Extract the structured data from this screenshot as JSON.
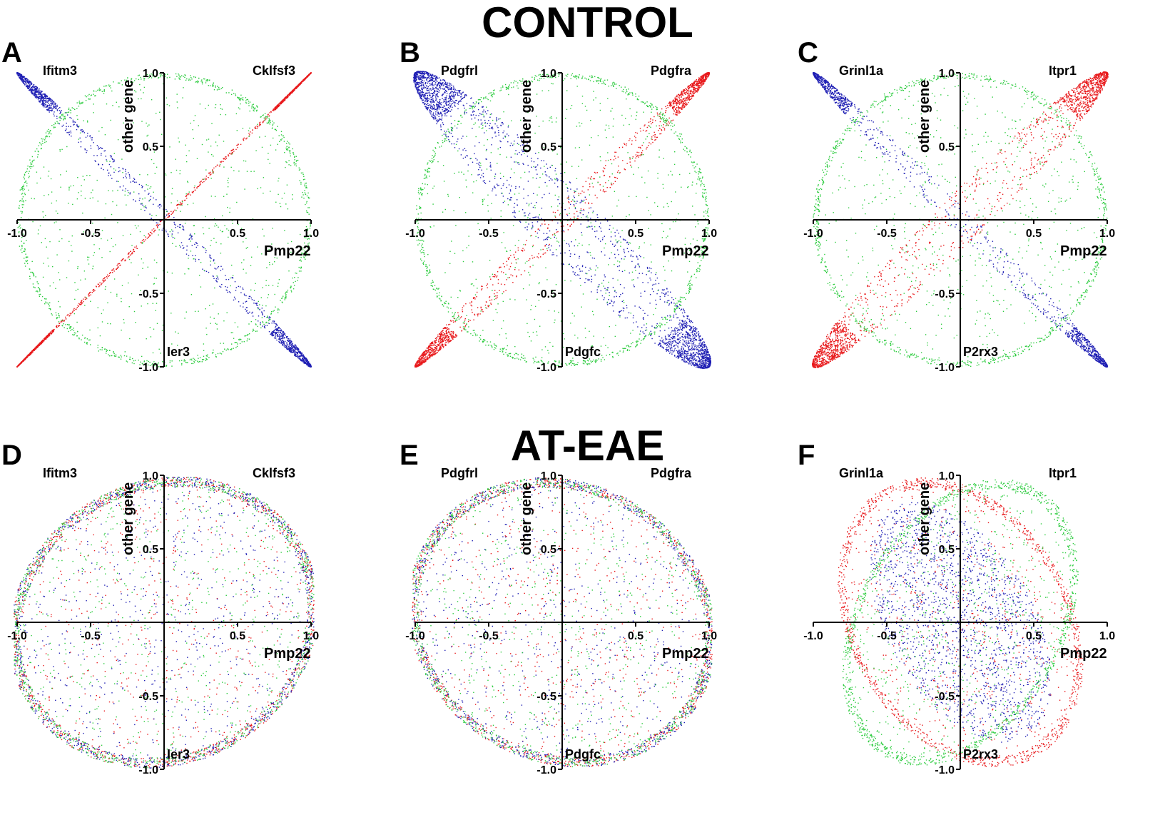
{
  "titles": {
    "control": "CONTROL",
    "eae": "AT-EAE"
  },
  "colors": {
    "red": "#e8191c",
    "blue": "#1f1fb4",
    "green": "#2ecc40",
    "axis": "#000000"
  },
  "chart_data": [
    {
      "panel": "A",
      "type": "scatter",
      "group": "CONTROL",
      "xlabel": "Pmp22",
      "ylabel": "other gene",
      "xlim": [
        -1,
        1
      ],
      "ylim": [
        -1,
        1
      ],
      "xticks": [
        "-1.0",
        "-0.5",
        "0.5",
        "1.0"
      ],
      "yticks": [
        "1.0",
        "0.5",
        "-0.5",
        "-1.0"
      ],
      "legend_labels": {
        "top_left": "Ifitm3",
        "top_right": "Cklfsf3",
        "bottom": "Ier3"
      },
      "series": [
        {
          "name": "Cklfsf3",
          "color": "red",
          "shape": "ellipse",
          "axis_deg": 45,
          "major": 1.414,
          "minor": 0.01,
          "n": 1300,
          "density": "ends"
        },
        {
          "name": "Ifitm3",
          "color": "blue",
          "shape": "ellipse",
          "axis_deg": -45,
          "major": 1.414,
          "minor": 0.06,
          "n": 1500,
          "density": "ends"
        },
        {
          "name": "Ier3",
          "color": "green",
          "shape": "circle",
          "radius": 1.0,
          "n": 1500
        }
      ]
    },
    {
      "panel": "B",
      "type": "scatter",
      "group": "CONTROL",
      "xlabel": "Pmp22",
      "ylabel": "other gene",
      "xlim": [
        -1,
        1
      ],
      "ylim": [
        -1,
        1
      ],
      "xticks": [
        "-1.0",
        "-0.5",
        "0.5",
        "1.0"
      ],
      "yticks": [
        "1.0",
        "0.5",
        "-0.5",
        "-1.0"
      ],
      "legend_labels": {
        "top_left": "Pdgfrl",
        "top_right": "Pdgfra",
        "bottom": "Pdgfc"
      },
      "series": [
        {
          "name": "Pdgfra",
          "color": "red",
          "shape": "ellipse",
          "axis_deg": 45,
          "major": 1.414,
          "minor": 0.08,
          "n": 1600,
          "density": "ends"
        },
        {
          "name": "Pdgfrl",
          "color": "blue",
          "shape": "ellipse",
          "axis_deg": -45,
          "major": 1.414,
          "minor": 0.22,
          "n": 2600,
          "density": "ends"
        },
        {
          "name": "Pdgfc",
          "color": "green",
          "shape": "circle",
          "radius": 1.0,
          "n": 1500
        }
      ]
    },
    {
      "panel": "C",
      "type": "scatter",
      "group": "CONTROL",
      "xlabel": "Pmp22",
      "ylabel": "other gene",
      "xlim": [
        -1,
        1
      ],
      "ylim": [
        -1,
        1
      ],
      "xticks": [
        "-1.0",
        "-0.5",
        "0.5",
        "1.0"
      ],
      "yticks": [
        "1.0",
        "0.5",
        "-0.5",
        "-1.0"
      ],
      "legend_labels": {
        "top_left": "Grinl1a",
        "top_right": "Itpr1",
        "bottom": "P2rx3"
      },
      "series": [
        {
          "name": "Itpr1",
          "color": "red",
          "shape": "ellipse",
          "axis_deg": 45,
          "major": 1.414,
          "minor": 0.16,
          "n": 2000,
          "density": "ends"
        },
        {
          "name": "Grinl1a",
          "color": "blue",
          "shape": "ellipse",
          "axis_deg": -45,
          "major": 1.414,
          "minor": 0.07,
          "n": 1300,
          "density": "ends"
        },
        {
          "name": "P2rx3",
          "color": "green",
          "shape": "circle",
          "radius": 1.0,
          "n": 1500
        }
      ]
    },
    {
      "panel": "D",
      "type": "scatter",
      "group": "AT-EAE",
      "xlabel": "Pmp22",
      "ylabel": "other gene",
      "xlim": [
        -1,
        1
      ],
      "ylim": [
        -1,
        1
      ],
      "xticks": [
        "-1.0",
        "-0.5",
        "0.5",
        "1.0"
      ],
      "yticks": [
        "1.0",
        "0.5",
        "-0.5",
        "-1.0"
      ],
      "legend_labels": {
        "top_left": "Ifitm3",
        "top_right": "Cklfsf3",
        "bottom": "Ier3"
      },
      "series": [
        {
          "name": "Cklfsf3",
          "color": "red",
          "shape": "ellipse",
          "axis_deg": 30,
          "major": 1.08,
          "minor": 0.96,
          "n": 1500,
          "density": "rim"
        },
        {
          "name": "Ifitm3",
          "color": "blue",
          "shape": "ellipse",
          "axis_deg": 30,
          "major": 1.08,
          "minor": 0.96,
          "n": 1500,
          "density": "rim"
        },
        {
          "name": "Ier3",
          "color": "green",
          "shape": "ellipse",
          "axis_deg": 30,
          "major": 1.08,
          "minor": 0.96,
          "n": 1500,
          "density": "rim"
        }
      ]
    },
    {
      "panel": "E",
      "type": "scatter",
      "group": "AT-EAE",
      "xlabel": "Pmp22",
      "ylabel": "other gene",
      "xlim": [
        -1,
        1
      ],
      "ylim": [
        -1,
        1
      ],
      "xticks": [
        "-1.0",
        "-0.5",
        "0.5",
        "1.0"
      ],
      "yticks": [
        "1.0",
        "0.5",
        "-0.5",
        "-1.0"
      ],
      "legend_labels": {
        "top_left": "Pdgfrl",
        "top_right": "Pdgfra",
        "bottom": "Pdgfc"
      },
      "series": [
        {
          "name": "Pdgfra",
          "color": "red",
          "shape": "ellipse",
          "axis_deg": -30,
          "major": 1.08,
          "minor": 0.95,
          "n": 1500,
          "density": "rim"
        },
        {
          "name": "Pdgfrl",
          "color": "blue",
          "shape": "ellipse",
          "axis_deg": -30,
          "major": 1.08,
          "minor": 0.95,
          "n": 1500,
          "density": "rim"
        },
        {
          "name": "Pdgfc",
          "color": "green",
          "shape": "ellipse",
          "axis_deg": -30,
          "major": 1.08,
          "minor": 0.95,
          "n": 1500,
          "density": "rim"
        }
      ]
    },
    {
      "panel": "F",
      "type": "scatter",
      "group": "AT-EAE",
      "xlabel": "Pmp22",
      "ylabel": "other gene",
      "xlim": [
        -1,
        1
      ],
      "ylim": [
        -1,
        1
      ],
      "xticks": [
        "-1.0",
        "-0.5",
        "0.5",
        "1.0"
      ],
      "yticks": [
        "1.0",
        "0.5",
        "-0.5",
        "-1.0"
      ],
      "legend_labels": {
        "top_left": "Grinl1a",
        "top_right": "Itpr1",
        "bottom": "P2rx3"
      },
      "series": [
        {
          "name": "Itpr1",
          "color": "red",
          "shape": "ellipse",
          "axis_deg": -60,
          "major": 1.05,
          "minor": 0.75,
          "n": 1700,
          "density": "rim"
        },
        {
          "name": "Grinl1a",
          "color": "blue",
          "shape": "ellipse",
          "axis_deg": -60,
          "major": 0.9,
          "minor": 0.5,
          "n": 1700,
          "density": "fill"
        },
        {
          "name": "P2rx3",
          "color": "green",
          "shape": "ellipse",
          "axis_deg": 60,
          "major": 1.05,
          "minor": 0.7,
          "n": 1700,
          "density": "rim"
        }
      ]
    }
  ]
}
